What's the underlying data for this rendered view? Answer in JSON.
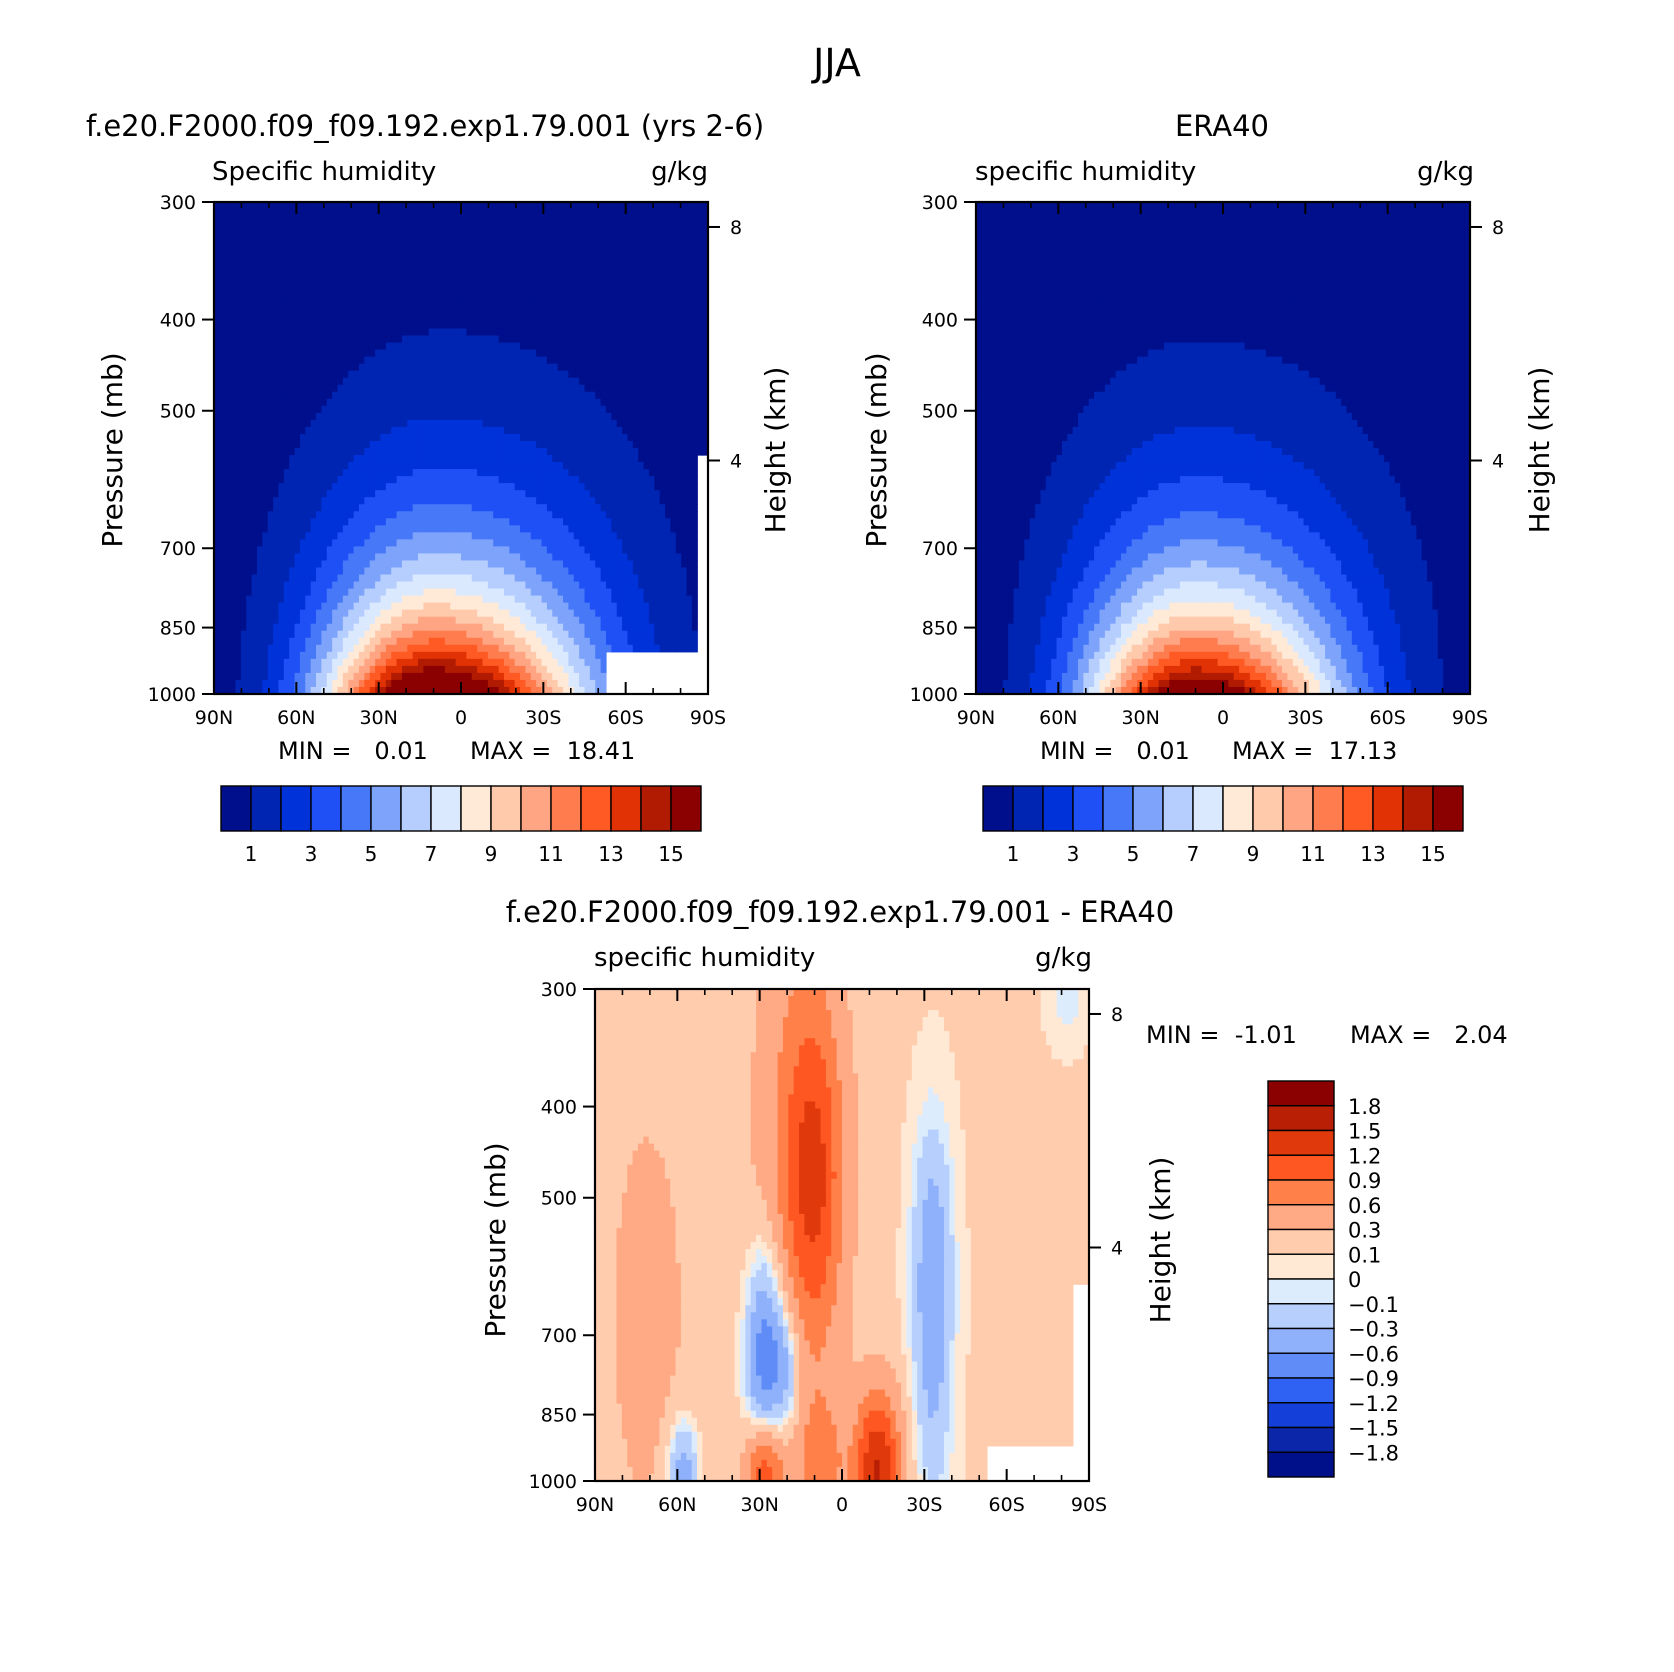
{
  "page_title": "JJA",
  "units": "g/kg",
  "y_axis_label": "Pressure (mb)",
  "y2_axis_label": "Height (km)",
  "pressure_ticks": [
    300,
    400,
    500,
    700,
    850,
    1000
  ],
  "height_ticks": [
    8,
    4
  ],
  "lat_ticks": [
    "90N",
    "60N",
    "30N",
    "0",
    "30S",
    "60S",
    "90S"
  ],
  "colors": {
    "abs_scale": [
      "#000f8c",
      "#0025b2",
      "#0032d9",
      "#1e50f5",
      "#4678f8",
      "#7ea3fa",
      "#b6cefd",
      "#dbe9fe",
      "#ffe9d7",
      "#ffc9ac",
      "#ffa583",
      "#ff7c4f",
      "#ff5a24",
      "#e13205",
      "#b11b02",
      "#8b0000"
    ],
    "diff_scale": [
      "#8b0000",
      "#b81f05",
      "#e03a0c",
      "#ff5722",
      "#ff8049",
      "#ffaa84",
      "#ffccad",
      "#ffe8d4",
      "#dcecfd",
      "#b6cffd",
      "#8fb0fa",
      "#5f8cf6",
      "#2f62f2",
      "#1440d9",
      "#0b26a8",
      "#00108a"
    ]
  },
  "panels": [
    {
      "title": "f.e20.F2000.f09_f09.192.exp1.79.001 (yrs 2-6)",
      "variable": "Specific humidity",
      "units": "g/kg",
      "min_text": "MIN =   0.01",
      "max_text": "MAX =  18.41"
    },
    {
      "title": "ERA40",
      "variable": "specific humidity",
      "units": "g/kg",
      "min_text": "MIN =   0.01",
      "max_text": "MAX =  17.13"
    },
    {
      "title": "f.e20.F2000.f09_f09.192.exp1.79.001 - ERA40",
      "variable": "specific humidity",
      "units": "g/kg",
      "min_text": "MIN =  -1.01",
      "max_text": "MAX =   2.04"
    }
  ],
  "abs_colorbar": {
    "tick_labels": [
      "1",
      "3",
      "5",
      "7",
      "9",
      "11",
      "13",
      "15"
    ]
  },
  "diff_colorbar": {
    "tick_labels": [
      "1.8",
      "1.5",
      "1.2",
      "0.9",
      "0.6",
      "0.3",
      "0.1",
      "0",
      "-0.1",
      "-0.3",
      "-0.6",
      "-0.9",
      "-1.2",
      "-1.5",
      "-1.8"
    ]
  },
  "chart_data": [
    {
      "type": "heatmap",
      "title": "f.e20.F2000.f09_f09.192.exp1.79.001 (yrs 2-6)",
      "subtitle": "Specific humidity",
      "xlabel": "",
      "ylabel": "Pressure (mb)",
      "y2label": "Height (km)",
      "x": [
        "90N",
        "60N",
        "30N",
        "0",
        "30S",
        "60S",
        "90S"
      ],
      "ylim": [
        1000,
        300
      ],
      "levels": [
        1,
        2,
        3,
        4,
        5,
        6,
        7,
        8,
        9,
        10,
        11,
        12,
        13,
        14,
        15
      ],
      "min": 0.01,
      "max": 18.41,
      "max_location": {
        "lat": "10N",
        "pressure": 1000
      }
    },
    {
      "type": "heatmap",
      "title": "ERA40",
      "subtitle": "specific humidity",
      "xlabel": "",
      "ylabel": "Pressure (mb)",
      "y2label": "Height (km)",
      "x": [
        "90N",
        "60N",
        "30N",
        "0",
        "30S",
        "60S",
        "90S"
      ],
      "ylim": [
        1000,
        300
      ],
      "levels": [
        1,
        2,
        3,
        4,
        5,
        6,
        7,
        8,
        9,
        10,
        11,
        12,
        13,
        14,
        15
      ],
      "min": 0.01,
      "max": 17.13,
      "max_location": {
        "lat": "10N",
        "pressure": 1000
      }
    },
    {
      "type": "heatmap",
      "title": "f.e20.F2000.f09_f09.192.exp1.79.001 - ERA40",
      "subtitle": "specific humidity",
      "xlabel": "",
      "ylabel": "Pressure (mb)",
      "y2label": "Height (km)",
      "x": [
        "90N",
        "60N",
        "30N",
        "0",
        "30S",
        "60S",
        "90S"
      ],
      "ylim": [
        1000,
        300
      ],
      "levels": [
        -1.8,
        -1.5,
        -1.2,
        -0.9,
        -0.6,
        -0.3,
        -0.1,
        0,
        0.1,
        0.3,
        0.6,
        0.9,
        1.2,
        1.5,
        1.8
      ],
      "min": -1.01,
      "max": 2.04
    }
  ]
}
